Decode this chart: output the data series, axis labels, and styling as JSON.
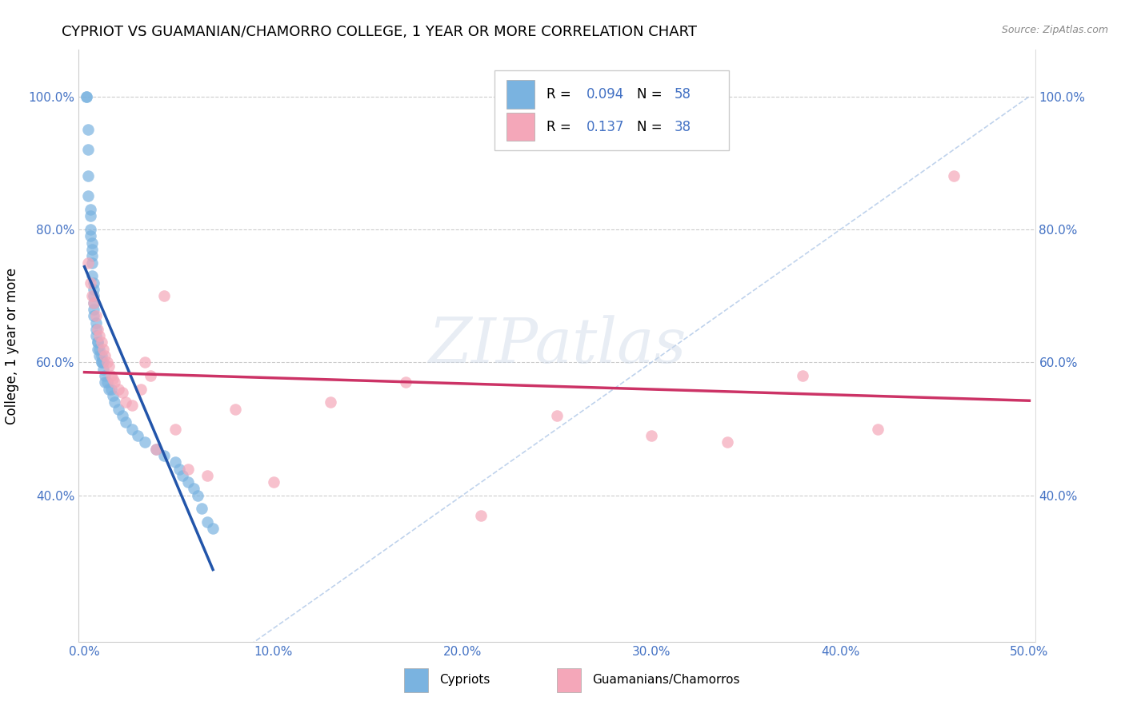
{
  "title": "CYPRIOT VS GUAMANIAN/CHAMORRO COLLEGE, 1 YEAR OR MORE CORRELATION CHART",
  "source": "Source: ZipAtlas.com",
  "ylabel": "College, 1 year or more",
  "xlim": [
    -0.003,
    0.503
  ],
  "ylim": [
    0.18,
    1.07
  ],
  "xticks": [
    0.0,
    0.1,
    0.2,
    0.3,
    0.4,
    0.5
  ],
  "xticklabels": [
    "0.0%",
    "10.0%",
    "20.0%",
    "30.0%",
    "40.0%",
    "50.0%"
  ],
  "yticks": [
    0.4,
    0.6,
    0.8,
    1.0
  ],
  "yticklabels": [
    "40.0%",
    "60.0%",
    "80.0%",
    "100.0%"
  ],
  "tick_color": "#4472c4",
  "blue_color": "#7ab3e0",
  "pink_color": "#f4a7b9",
  "blue_line_color": "#2255aa",
  "pink_line_color": "#cc3366",
  "diagonal_color": "#b0c8e8",
  "watermark": "ZIPatlas",
  "legend_labels": [
    "Cypriots",
    "Guamanians/Chamorros"
  ],
  "r_cypriot": "0.094",
  "n_cypriot": "58",
  "r_guam": "0.137",
  "n_guam": "38",
  "blue_text_color": "#4472c4",
  "cypriot_x": [
    0.001,
    0.001,
    0.002,
    0.002,
    0.002,
    0.002,
    0.003,
    0.003,
    0.003,
    0.003,
    0.004,
    0.004,
    0.004,
    0.004,
    0.004,
    0.005,
    0.005,
    0.005,
    0.005,
    0.005,
    0.005,
    0.006,
    0.006,
    0.006,
    0.007,
    0.007,
    0.007,
    0.008,
    0.008,
    0.009,
    0.009,
    0.009,
    0.01,
    0.01,
    0.011,
    0.011,
    0.012,
    0.013,
    0.014,
    0.015,
    0.016,
    0.018,
    0.02,
    0.022,
    0.025,
    0.028,
    0.032,
    0.038,
    0.042,
    0.048,
    0.05,
    0.052,
    0.055,
    0.058,
    0.06,
    0.062,
    0.065,
    0.068
  ],
  "cypriot_y": [
    1.0,
    1.0,
    0.95,
    0.92,
    0.88,
    0.85,
    0.83,
    0.82,
    0.8,
    0.79,
    0.78,
    0.77,
    0.76,
    0.75,
    0.73,
    0.72,
    0.71,
    0.7,
    0.69,
    0.68,
    0.67,
    0.66,
    0.65,
    0.64,
    0.63,
    0.63,
    0.62,
    0.62,
    0.61,
    0.61,
    0.6,
    0.6,
    0.6,
    0.59,
    0.58,
    0.57,
    0.57,
    0.56,
    0.56,
    0.55,
    0.54,
    0.53,
    0.52,
    0.51,
    0.5,
    0.49,
    0.48,
    0.47,
    0.46,
    0.45,
    0.44,
    0.43,
    0.42,
    0.41,
    0.4,
    0.38,
    0.36,
    0.35
  ],
  "guam_x": [
    0.002,
    0.003,
    0.004,
    0.005,
    0.006,
    0.007,
    0.008,
    0.009,
    0.01,
    0.011,
    0.012,
    0.013,
    0.014,
    0.015,
    0.016,
    0.018,
    0.02,
    0.022,
    0.025,
    0.03,
    0.032,
    0.035,
    0.038,
    0.042,
    0.048,
    0.055,
    0.065,
    0.08,
    0.1,
    0.13,
    0.17,
    0.21,
    0.25,
    0.3,
    0.34,
    0.38,
    0.42,
    0.46
  ],
  "guam_y": [
    0.75,
    0.72,
    0.7,
    0.69,
    0.67,
    0.65,
    0.64,
    0.63,
    0.62,
    0.61,
    0.6,
    0.595,
    0.58,
    0.575,
    0.57,
    0.56,
    0.555,
    0.54,
    0.535,
    0.56,
    0.6,
    0.58,
    0.47,
    0.7,
    0.5,
    0.44,
    0.43,
    0.53,
    0.42,
    0.54,
    0.57,
    0.37,
    0.52,
    0.49,
    0.48,
    0.58,
    0.5,
    0.88
  ]
}
